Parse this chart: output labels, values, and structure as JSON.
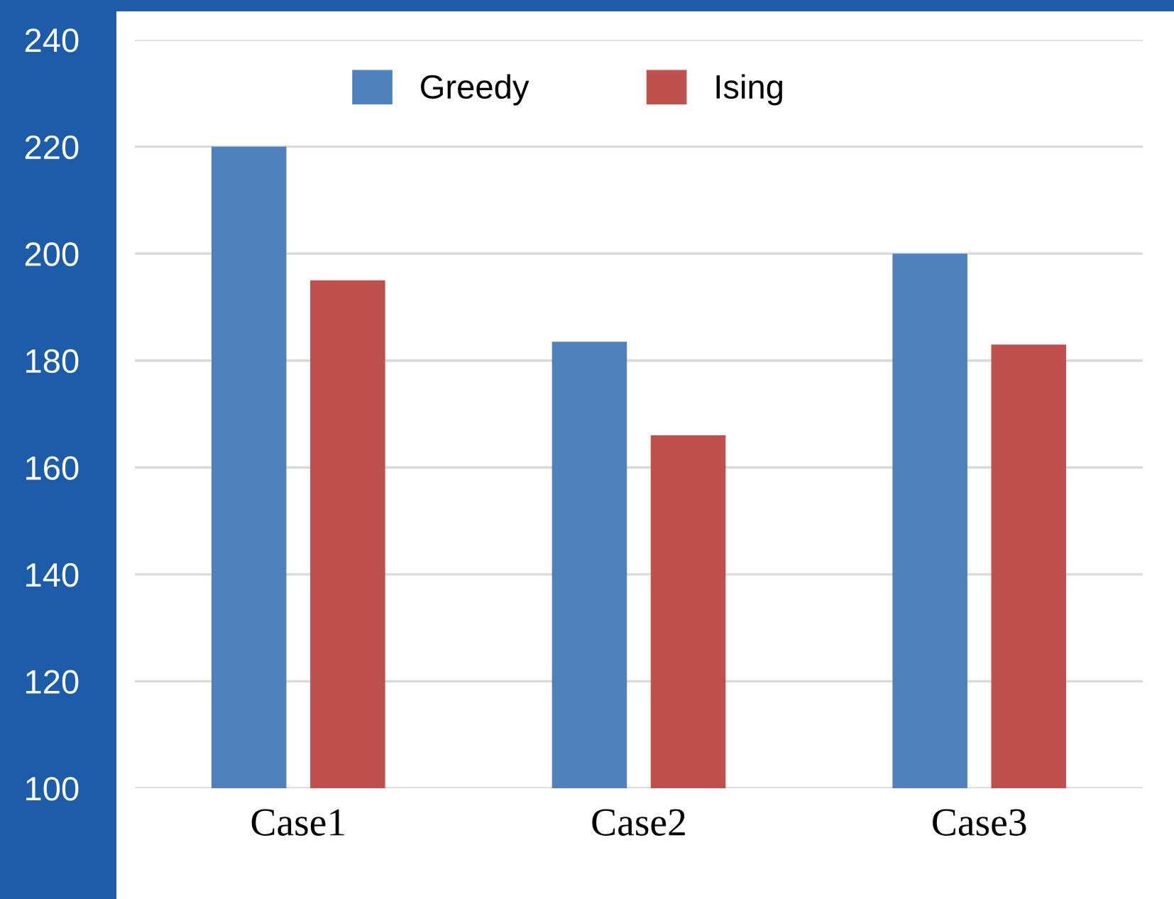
{
  "chart_data": {
    "type": "bar",
    "categories": [
      "Case1",
      "Case2",
      "Case3"
    ],
    "series": [
      {
        "name": "Greedy",
        "color": "#4f81bd",
        "values": [
          220,
          183.5,
          200
        ]
      },
      {
        "name": "Ising",
        "color": "#c0504d",
        "values": [
          195,
          166,
          183
        ]
      }
    ],
    "ylim": [
      100,
      240
    ],
    "yticks": [
      100,
      120,
      140,
      160,
      180,
      200,
      220,
      240
    ],
    "grid": "y",
    "legend": "top"
  }
}
